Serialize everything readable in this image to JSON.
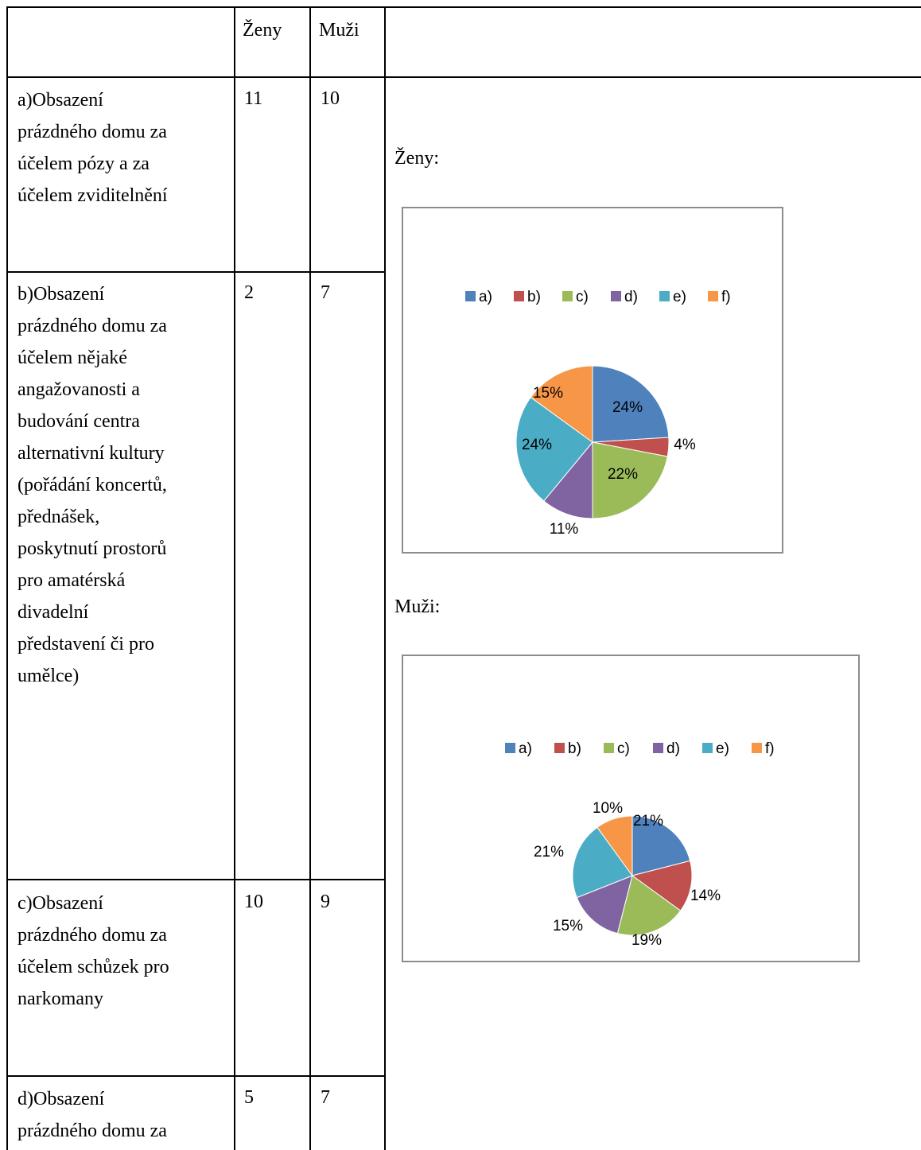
{
  "table": {
    "headers": {
      "empty": "",
      "women": "Ženy",
      "men": "Muži"
    },
    "rows": [
      {
        "label": [
          "a)Obsazení",
          "prázdného domu za",
          "účelem pózy a za",
          "účelem zviditelnění"
        ],
        "women": "11",
        "men": "10"
      },
      {
        "label": [
          "b)Obsazení",
          "prázdného domu za",
          "účelem nějaké",
          "angažovanosti a",
          "budování centra",
          "alternativní kultury",
          "(pořádání koncertů,",
          "přednášek,",
          "poskytnutí prostorů",
          "pro amatérská",
          "divadelní",
          "představení či pro",
          "umělce)"
        ],
        "women": "2",
        "men": "7"
      },
      {
        "label": [
          "c)Obsazení",
          "prázdného domu za",
          "účelem schůzek pro",
          "narkomany"
        ],
        "women": "10",
        "men": "9"
      },
      {
        "label": [
          "d)Obsazení",
          "prázdného domu za"
        ],
        "women": "5",
        "men": "7"
      }
    ]
  },
  "labels": {
    "women": "Ženy:",
    "men": "Muži:"
  },
  "colors": {
    "a": "#4f81bd",
    "b": "#c0504d",
    "c": "#9bbb59",
    "d": "#8064a2",
    "e": "#4bacc6",
    "f": "#f79646"
  },
  "chart_data": [
    {
      "type": "pie",
      "legend_position": "top",
      "categories": [
        "a)",
        "b)",
        "c)",
        "d)",
        "e)",
        "f)"
      ],
      "values": [
        24,
        4,
        22,
        11,
        24,
        15
      ],
      "data_labels": [
        "24%",
        "4%",
        "22%",
        "11%",
        "24%",
        "15%"
      ]
    },
    {
      "type": "pie",
      "legend_position": "top",
      "categories": [
        "a)",
        "b)",
        "c)",
        "d)",
        "e)",
        "f)"
      ],
      "values": [
        21,
        14,
        19,
        15,
        21,
        10
      ],
      "data_labels": [
        "21%",
        "14%",
        "19%",
        "15%",
        "21%",
        "10%"
      ]
    }
  ]
}
